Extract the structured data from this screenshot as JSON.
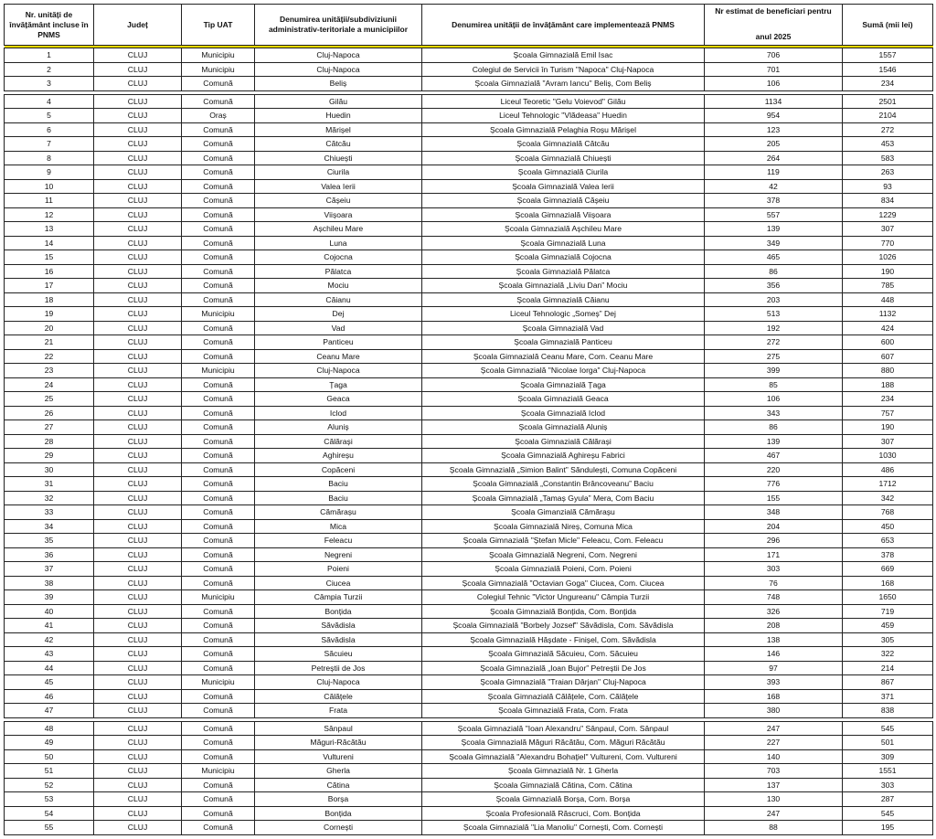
{
  "headers": {
    "nr": "Nr. unități de învățământ incluse în PNMS",
    "judet": "Județ",
    "tip": "Tip UAT",
    "uat": "Denumirea unității/subdiviziunii administrativ-teritoriale a municipiilor",
    "scoala": "Denumirea unității de învățământ care implementează PNMS",
    "beneficiari_line1": "Nr estimat de beneficiari pentru",
    "beneficiari_line2": "anul 2025",
    "suma": "Sumă (mii lei)"
  },
  "gap_after": [
    3,
    47
  ],
  "rows": [
    [
      "1",
      "CLUJ",
      "Municipiu",
      "Cluj-Napoca",
      "Școala Gimnazială Emil Isac",
      "706",
      "1557"
    ],
    [
      "2",
      "CLUJ",
      "Municipiu",
      "Cluj-Napoca",
      "Colegiul de Servicii în Turism \"Napoca\" Cluj-Napoca",
      "701",
      "1546"
    ],
    [
      "3",
      "CLUJ",
      "Comună",
      "Beliș",
      "Școala Gimnazială \"Avram Iancu\" Beliș, Com Beliș",
      "106",
      "234"
    ],
    [
      "4",
      "CLUJ",
      "Comună",
      "Gilău",
      "Liceul Teoretic \"Gelu Voievod\" Gilău",
      "1134",
      "2501"
    ],
    [
      "5",
      "CLUJ",
      "Oraș",
      "Huedin",
      "Liceul Tehnologic \"Vlădeasa\" Huedin",
      "954",
      "2104"
    ],
    [
      "6",
      "CLUJ",
      "Comună",
      "Mărișel",
      "Școala Gimnazială Pelaghia Roșu Mărișel",
      "123",
      "272"
    ],
    [
      "7",
      "CLUJ",
      "Comună",
      "Cătcău",
      "Școala Gimnazială Cătcău",
      "205",
      "453"
    ],
    [
      "8",
      "CLUJ",
      "Comună",
      "Chiuești",
      "Școala Gimnazială Chiuești",
      "264",
      "583"
    ],
    [
      "9",
      "CLUJ",
      "Comună",
      "Ciurila",
      "Școala Gimnazială Ciurila",
      "119",
      "263"
    ],
    [
      "10",
      "CLUJ",
      "Comună",
      "Valea Ierii",
      "Școala Gimnazială Valea Ierii",
      "42",
      "93"
    ],
    [
      "11",
      "CLUJ",
      "Comună",
      "Cășeiu",
      "Școala Gimnazială Cășeiu",
      "378",
      "834"
    ],
    [
      "12",
      "CLUJ",
      "Comună",
      "Viișoara",
      "Școala Gimnazială Viișoara",
      "557",
      "1229"
    ],
    [
      "13",
      "CLUJ",
      "Comună",
      "Așchileu Mare",
      "Școala Gimnazială Așchileu Mare",
      "139",
      "307"
    ],
    [
      "14",
      "CLUJ",
      "Comună",
      "Luna",
      "Școala Gimnazială Luna",
      "349",
      "770"
    ],
    [
      "15",
      "CLUJ",
      "Comună",
      "Cojocna",
      "Școala Gimnazială Cojocna",
      "465",
      "1026"
    ],
    [
      "16",
      "CLUJ",
      "Comună",
      "Pălatca",
      "Școala Gimnazială Pălatca",
      "86",
      "190"
    ],
    [
      "17",
      "CLUJ",
      "Comună",
      "Mociu",
      "Școala Gimnazială „Liviu Dan” Mociu",
      "356",
      "785"
    ],
    [
      "18",
      "CLUJ",
      "Comună",
      "Căianu",
      "Școala Gimnazială Căianu",
      "203",
      "448"
    ],
    [
      "19",
      "CLUJ",
      "Municipiu",
      "Dej",
      "Liceul Tehnologic „Someș” Dej",
      "513",
      "1132"
    ],
    [
      "20",
      "CLUJ",
      "Comună",
      "Vad",
      "Școala Gimnazială Vad",
      "192",
      "424"
    ],
    [
      "21",
      "CLUJ",
      "Comună",
      "Panticeu",
      "Școala Gimnazială Panticeu",
      "272",
      "600"
    ],
    [
      "22",
      "CLUJ",
      "Comună",
      "Ceanu Mare",
      "Școala Gimnazială Ceanu Mare, Com. Ceanu Mare",
      "275",
      "607"
    ],
    [
      "23",
      "CLUJ",
      "Municipiu",
      "Cluj-Napoca",
      "Școala Gimnazială \"Nicolae Iorga\" Cluj-Napoca",
      "399",
      "880"
    ],
    [
      "24",
      "CLUJ",
      "Comună",
      "Țaga",
      "Școala Gimnazială Țaga",
      "85",
      "188"
    ],
    [
      "25",
      "CLUJ",
      "Comună",
      "Geaca",
      "Școala Gimnazială Geaca",
      "106",
      "234"
    ],
    [
      "26",
      "CLUJ",
      "Comună",
      "Iclod",
      "Școala Gimnazială Iclod",
      "343",
      "757"
    ],
    [
      "27",
      "CLUJ",
      "Comună",
      "Aluniș",
      "Școala Gimnazială Aluniș",
      "86",
      "190"
    ],
    [
      "28",
      "CLUJ",
      "Comună",
      "Călărași",
      "Școala Gimnazială Călărași",
      "139",
      "307"
    ],
    [
      "29",
      "CLUJ",
      "Comună",
      "Aghireșu",
      "Școala Gimnazială Aghireșu Fabrici",
      "467",
      "1030"
    ],
    [
      "30",
      "CLUJ",
      "Comună",
      "Copăceni",
      "Școala Gimnazială „Simion Balint” Săndulești, Comuna Copăceni",
      "220",
      "486"
    ],
    [
      "31",
      "CLUJ",
      "Comună",
      "Baciu",
      "Școala Gimnazială „Constantin Brâncoveanu” Baciu",
      "776",
      "1712"
    ],
    [
      "32",
      "CLUJ",
      "Comună",
      "Baciu",
      "Școala Gimnazială „Tamaș Gyula” Mera, Com Baciu",
      "155",
      "342"
    ],
    [
      "33",
      "CLUJ",
      "Comună",
      "Cămărașu",
      "Școala Gimanzială Cămărașu",
      "348",
      "768"
    ],
    [
      "34",
      "CLUJ",
      "Comună",
      "Mica",
      "Școala Gimnazială Nireș, Comuna Mica",
      "204",
      "450"
    ],
    [
      "35",
      "CLUJ",
      "Comună",
      "Feleacu",
      "Școala Gimnazială \"Ștefan Micle\" Feleacu, Com. Feleacu",
      "296",
      "653"
    ],
    [
      "36",
      "CLUJ",
      "Comună",
      "Negreni",
      "Școala Gimnazială Negreni, Com. Negreni",
      "171",
      "378"
    ],
    [
      "37",
      "CLUJ",
      "Comună",
      "Poieni",
      "Școala Gimnazială Poieni, Com. Poieni",
      "303",
      "669"
    ],
    [
      "38",
      "CLUJ",
      "Comună",
      "Ciucea",
      "Școala Gimnazială \"Octavian Goga\" Ciucea, Com. Ciucea",
      "76",
      "168"
    ],
    [
      "39",
      "CLUJ",
      "Municipiu",
      "Câmpia Turzii",
      "Colegiul Tehnic \"Victor Ungureanu\" Câmpia Turzii",
      "748",
      "1650"
    ],
    [
      "40",
      "CLUJ",
      "Comună",
      "Bonțida",
      "Școala Gimnazială Bonțida, Com. Bonțida",
      "326",
      "719"
    ],
    [
      "41",
      "CLUJ",
      "Comună",
      "Săvădisla",
      "Școala Gimnazială \"Borbely Jozsef\" Săvădisla, Com. Săvădisla",
      "208",
      "459"
    ],
    [
      "42",
      "CLUJ",
      "Comună",
      "Săvădisla",
      "Școala Gimnazială Hășdate - Finișel, Com. Săvădisla",
      "138",
      "305"
    ],
    [
      "43",
      "CLUJ",
      "Comună",
      "Săcuieu",
      "Școala Gimnazială Săcuieu, Com. Săcuieu",
      "146",
      "322"
    ],
    [
      "44",
      "CLUJ",
      "Comună",
      "Petreștii de Jos",
      "Școala Gimnazială „Ioan Bujor” Petreștii De Jos",
      "97",
      "214"
    ],
    [
      "45",
      "CLUJ",
      "Municipiu",
      "Cluj-Napoca",
      "Școala Gimnazială \"Traian Dârjan\" Cluj-Napoca",
      "393",
      "867"
    ],
    [
      "46",
      "CLUJ",
      "Comună",
      "Călățele",
      "Școala Gimnazială Călățele, Com. Călățele",
      "168",
      "371"
    ],
    [
      "47",
      "CLUJ",
      "Comună",
      "Frata",
      "Școala Gimnazială Frata, Com. Frata",
      "380",
      "838"
    ],
    [
      "48",
      "CLUJ",
      "Comună",
      "Sânpaul",
      "Școala Gimnazială \"Ioan Alexandru\" Sânpaul, Com. Sânpaul",
      "247",
      "545"
    ],
    [
      "49",
      "CLUJ",
      "Comună",
      "Măguri-Răcătău",
      "Școala Gimnazială Măguri Răcătău, Com. Măguri Răcătău",
      "227",
      "501"
    ],
    [
      "50",
      "CLUJ",
      "Comună",
      "Vultureni",
      "Școala Gimnazială \"Alexandru Bohațiel\" Vultureni, Com. Vultureni",
      "140",
      "309"
    ],
    [
      "51",
      "CLUJ",
      "Municipiu",
      "Gherla",
      "Școala Gimnazială Nr. 1 Gherla",
      "703",
      "1551"
    ],
    [
      "52",
      "CLUJ",
      "Comună",
      "Cătina",
      "Școala Gimnazială Cătina, Com. Cătina",
      "137",
      "303"
    ],
    [
      "53",
      "CLUJ",
      "Comună",
      "Borșa",
      "Școala Gimnazială Borșa, Com. Borșa",
      "130",
      "287"
    ],
    [
      "54",
      "CLUJ",
      "Comună",
      "Bonțida",
      "Școala Profesională Răscruci, Com. Bonțida",
      "247",
      "545"
    ],
    [
      "55",
      "CLUJ",
      "Comună",
      "Cornești",
      "Școala Gimnazială \"Lia Manoliu\" Cornești, Com. Cornești",
      "88",
      "195"
    ]
  ],
  "colors": {
    "header_rule": "#e8d800",
    "border": "#222222"
  }
}
